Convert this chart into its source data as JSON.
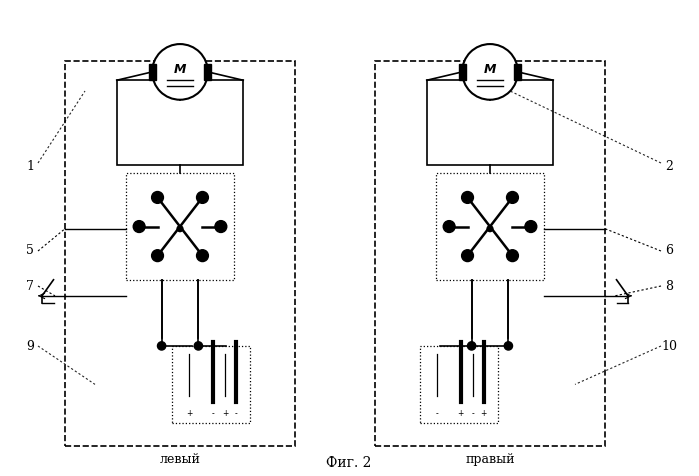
{
  "bg_color": "#ffffff",
  "fig_width": 6.99,
  "fig_height": 4.76,
  "title": "Фиг. 2",
  "left_label": "левый",
  "right_label": "правый"
}
